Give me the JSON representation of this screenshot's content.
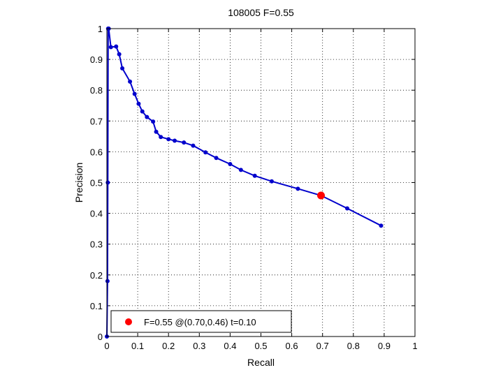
{
  "chart_data": {
    "type": "line",
    "title": "108005 F=0.55",
    "xlabel": "Recall",
    "ylabel": "Precision",
    "xlim": [
      0,
      1
    ],
    "ylim": [
      0,
      1
    ],
    "xticks": [
      "0",
      "0.1",
      "0.2",
      "0.3",
      "0.4",
      "0.5",
      "0.6",
      "0.7",
      "0.8",
      "0.9",
      "1"
    ],
    "yticks": [
      "0",
      "0.1",
      "0.2",
      "0.3",
      "0.4",
      "0.5",
      "0.6",
      "0.7",
      "0.8",
      "0.9",
      "1"
    ],
    "grid": true,
    "legend": {
      "position": "bottom-left",
      "text": "F=0.55 @(0.70,0.46) t=0.10"
    },
    "series": [
      {
        "color": "#0000cc",
        "marker": "dot",
        "points": [
          [
            0.0,
            0.0
          ],
          [
            0.002,
            0.18
          ],
          [
            0.003,
            0.5
          ],
          [
            0.004,
            1.0
          ],
          [
            0.005,
            1.0
          ],
          [
            0.006,
            1.0
          ],
          [
            0.013,
            0.94
          ],
          [
            0.03,
            0.942
          ],
          [
            0.04,
            0.917
          ],
          [
            0.05,
            0.871
          ],
          [
            0.075,
            0.828
          ],
          [
            0.09,
            0.788
          ],
          [
            0.103,
            0.756
          ],
          [
            0.115,
            0.731
          ],
          [
            0.13,
            0.713
          ],
          [
            0.15,
            0.698
          ],
          [
            0.16,
            0.665
          ],
          [
            0.175,
            0.648
          ],
          [
            0.2,
            0.641
          ],
          [
            0.22,
            0.636
          ],
          [
            0.25,
            0.63
          ],
          [
            0.28,
            0.62
          ],
          [
            0.32,
            0.598
          ],
          [
            0.355,
            0.58
          ],
          [
            0.4,
            0.56
          ],
          [
            0.435,
            0.541
          ],
          [
            0.48,
            0.522
          ],
          [
            0.535,
            0.504
          ],
          [
            0.62,
            0.48
          ],
          [
            0.695,
            0.458
          ],
          [
            0.78,
            0.416
          ],
          [
            0.89,
            0.36
          ]
        ]
      }
    ],
    "highlight": {
      "x": 0.695,
      "y": 0.458,
      "color": "#ff0000"
    }
  }
}
